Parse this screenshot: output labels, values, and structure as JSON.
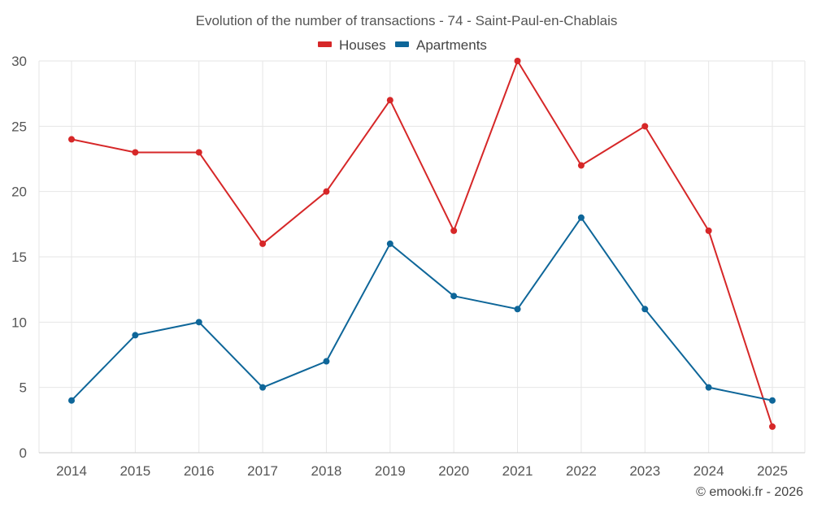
{
  "chart_data": {
    "type": "line",
    "title": "Evolution of the number of transactions - 74 - Saint-Paul-en-Chablais",
    "categories": [
      "2014",
      "2015",
      "2016",
      "2017",
      "2018",
      "2019",
      "2020",
      "2021",
      "2022",
      "2023",
      "2024",
      "2025"
    ],
    "series": [
      {
        "name": "Houses",
        "color": "#d62728",
        "values": [
          24,
          23,
          23,
          16,
          20,
          27,
          17,
          30,
          22,
          25,
          17,
          2
        ]
      },
      {
        "name": "Apartments",
        "color": "#0e6699",
        "values": [
          4,
          9,
          10,
          5,
          7,
          16,
          12,
          11,
          18,
          11,
          5,
          4
        ]
      }
    ],
    "ylim": [
      0,
      30
    ],
    "yticks": [
      0,
      5,
      10,
      15,
      20,
      25,
      30
    ],
    "xlabel": "",
    "ylabel": "",
    "grid": true,
    "legend_position": "top-center"
  },
  "credit": "© emooki.fr - 2026"
}
